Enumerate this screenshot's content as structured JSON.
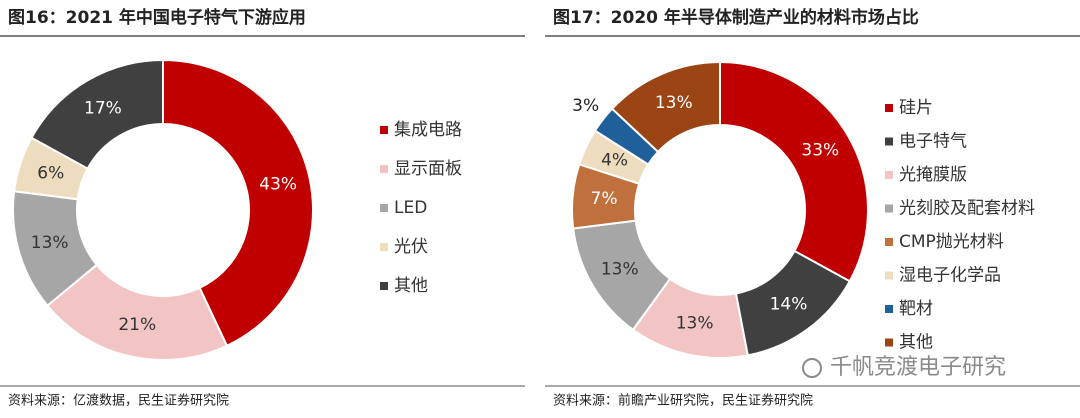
{
  "chart_data": [
    {
      "type": "pie",
      "title": "图16：2021 年中国电子特气下游应用",
      "source": "资料来源：亿渡数据，民生证券研究院",
      "categories": [
        "集成电路",
        "显示面板",
        "LED",
        "光伏",
        "其他"
      ],
      "values": [
        43,
        21,
        13,
        6,
        17
      ],
      "value_labels": [
        "43%",
        "21%",
        "13%",
        "6%",
        "17%"
      ],
      "colors": [
        "#c00000",
        "#f2c4c4",
        "#a6a6a6",
        "#eedcbf",
        "#404040"
      ],
      "legend": "right"
    },
    {
      "type": "pie",
      "title": "图17：2020 年半导体制造产业的材料市场占比",
      "source": "资料来源：前瞻产业研究院，民生证券研究院",
      "categories": [
        "硅片",
        "电子特气",
        "光掩膜版",
        "光刻胶及配套材料",
        "CMP抛光材料",
        "湿电子化学品",
        "靶材",
        "其他"
      ],
      "values": [
        33,
        14,
        13,
        13,
        7,
        4,
        3,
        13
      ],
      "value_labels": [
        "33%",
        "14%",
        "13%",
        "13%",
        "7%",
        "4%",
        "3%",
        "13%"
      ],
      "colors": [
        "#c00000",
        "#404040",
        "#f2c4c4",
        "#a6a6a6",
        "#c0703c",
        "#eedcbf",
        "#1f5f9a",
        "#9c4514"
      ],
      "legend": "right"
    }
  ],
  "watermark": "千帆竞渡电子研究"
}
